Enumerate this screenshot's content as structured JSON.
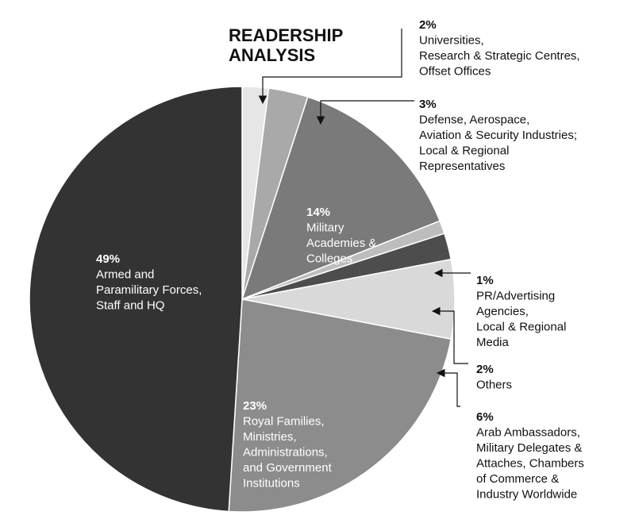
{
  "chart_data": {
    "type": "pie",
    "title": "READERSHIP ANALYSIS",
    "title_lines": [
      "READERSHIP",
      "ANALYSIS"
    ],
    "slices": [
      {
        "value": 2,
        "pct_label": "2%",
        "label_lines": [
          "Universities,",
          "Research & Strategic Centres,",
          "Offset Offices"
        ],
        "color": "#e6e6e6"
      },
      {
        "value": 3,
        "pct_label": "3%",
        "label_lines": [
          "Defense, Aerospace,",
          "Aviation & Security Industries;",
          "Local & Regional",
          "Representatives"
        ],
        "color": "#a9a9a9"
      },
      {
        "value": 14,
        "pct_label": "14%",
        "label_lines": [
          "Military",
          "Academies &",
          "Colleges"
        ],
        "color": "#7a7a7a"
      },
      {
        "value": 1,
        "pct_label": "1%",
        "label_lines": [
          "PR/Advertising",
          "Agencies,",
          "Local & Regional",
          "Media"
        ],
        "color": "#bdbdbd"
      },
      {
        "value": 2,
        "pct_label": "2%",
        "label_lines": [
          "Others"
        ],
        "color": "#4d4d4d"
      },
      {
        "value": 6,
        "pct_label": "6%",
        "label_lines": [
          "Arab Ambassadors,",
          "Military Delegates &",
          "Attaches, Chambers",
          "of Commerce &",
          "Industry Worldwide"
        ],
        "color": "#d9d9d9"
      },
      {
        "value": 23,
        "pct_label": "23%",
        "label_lines": [
          "Royal Families,",
          "Ministries,",
          "Administrations,",
          "and Government",
          "Institutions"
        ],
        "color": "#8c8c8c"
      },
      {
        "value": 49,
        "pct_label": "49%",
        "label_lines": [
          "Armed and",
          "Paramilitary Forces,",
          "Staff and HQ"
        ],
        "color": "#333333"
      }
    ]
  }
}
